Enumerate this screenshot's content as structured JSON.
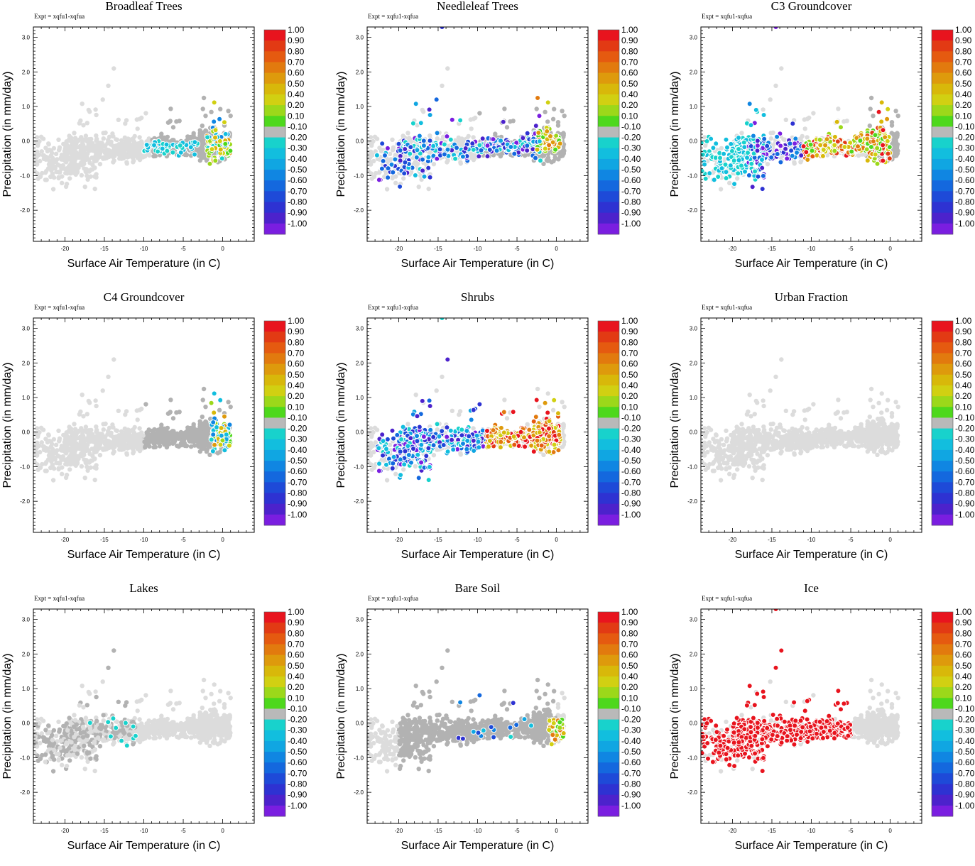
{
  "chart_data": {
    "type": "scatter",
    "experiment": "Expt = xqfu1-xqfua",
    "xlabel": "Surface Air Temperature (in C)",
    "ylabel": "Precipitation (in mm/day)",
    "xlim": [
      -24,
      4
    ],
    "ylim": [
      -2.9,
      3.3
    ],
    "x_ticks": [
      "-20",
      "-15",
      "-10",
      "-5",
      "0"
    ],
    "y_ticks": [
      "3.0",
      "2.0",
      "1.0",
      "0.0",
      "-1.0",
      "-2.0"
    ],
    "colorbar_labels": [
      "1.00",
      "0.90",
      "0.80",
      "0.70",
      "0.60",
      "0.50",
      "0.40",
      "0.20",
      "0.10",
      "-0.10",
      "-0.20",
      "-0.30",
      "-0.40",
      "-0.50",
      "-0.60",
      "-0.70",
      "-0.80",
      "-0.90",
      "-1.00"
    ],
    "colorbar_colors": [
      "#e8141e",
      "#e23a14",
      "#e55a10",
      "#e27a0e",
      "#de9a0c",
      "#d8b80a",
      "#d1d012",
      "#9cd81a",
      "#4ed81c",
      "#b9b9b9",
      "#18d2cc",
      "#12bede",
      "#10a6e2",
      "#1086e2",
      "#1468de",
      "#1e4ad8",
      "#2e32d2",
      "#4c22cc",
      "#7a1ee0"
    ],
    "panels": [
      {
        "title": "Broadleaf Trees",
        "mode": "broadleaf"
      },
      {
        "title": "Needleleaf Trees",
        "mode": "needleleaf"
      },
      {
        "title": "C3 Groundcover",
        "mode": "c3"
      },
      {
        "title": "C4 Groundcover",
        "mode": "c4"
      },
      {
        "title": "Shrubs",
        "mode": "shrubs"
      },
      {
        "title": "Urban Fraction",
        "mode": "urban"
      },
      {
        "title": "Lakes",
        "mode": "lakes"
      },
      {
        "title": "Bare Soil",
        "mode": "baresoil"
      },
      {
        "title": "Ice",
        "mode": "ice"
      }
    ]
  }
}
